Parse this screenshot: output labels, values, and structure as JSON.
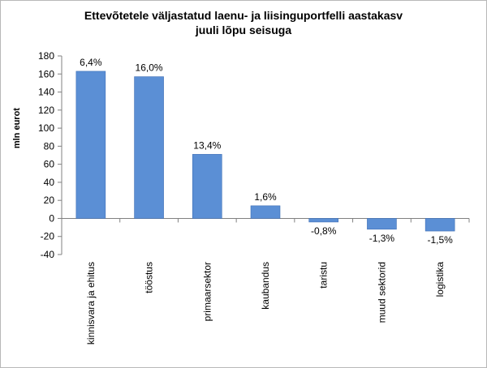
{
  "chart_data": {
    "type": "bar",
    "title_lines": [
      "Ettevõtetele  väljastatud  laenu- ja liisinguportfelli  aastakasv",
      "juuli lõpu seisuga"
    ],
    "ylabel": "mln eurot",
    "xlabel": "",
    "ylim": [
      -40,
      180
    ],
    "yticks": [
      180,
      160,
      140,
      120,
      100,
      80,
      60,
      40,
      20,
      0,
      -20,
      -40
    ],
    "ytick_labels": [
      "180",
      "160",
      "140",
      "120",
      "100",
      "80",
      "60",
      "40",
      "20",
      "0",
      "-20",
      "-40"
    ],
    "grid": false,
    "legend": "none",
    "categories": [
      "kinnisvara ja ehitus",
      "tööstus",
      "primaarsektor",
      "kaubandus",
      "taristu",
      "muud sektorid",
      "logistika"
    ],
    "values": [
      163,
      157,
      71,
      14,
      -4,
      -12,
      -14
    ],
    "data_labels": [
      "6,4%",
      "16,0%",
      "13,4%",
      "1,6%",
      "-0,8%",
      "-1,3%",
      "-1,5%"
    ],
    "bar_color": "#5b8fd5",
    "bar_edge_color": "#3f6fb5"
  }
}
